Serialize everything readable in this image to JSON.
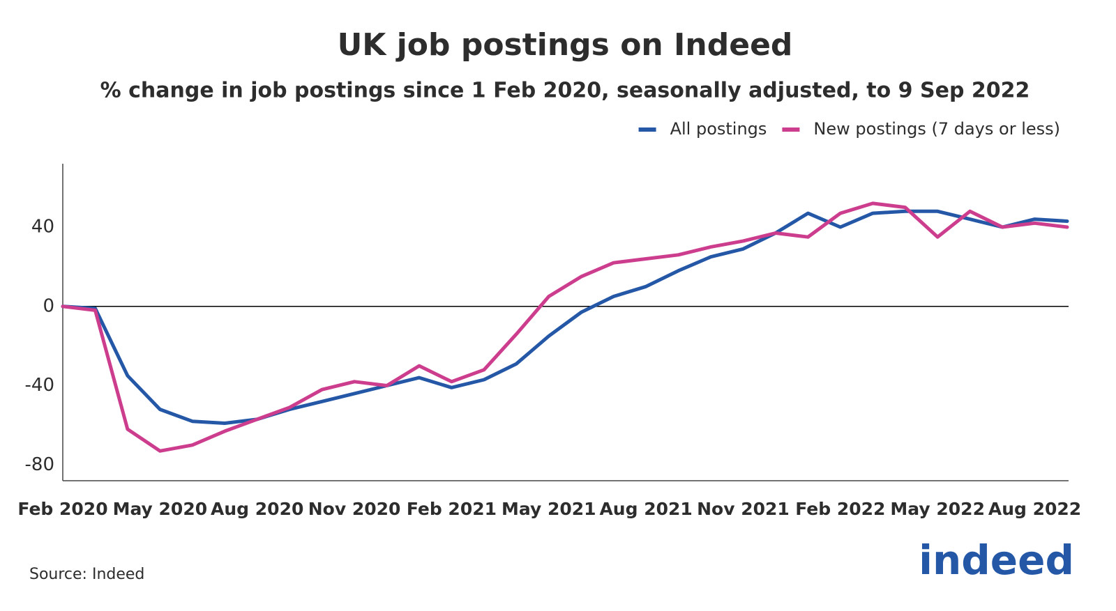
{
  "chart_data": {
    "type": "line",
    "title": "UK job postings on Indeed",
    "subtitle": "% change in job postings since 1 Feb 2020, seasonally adjusted, to 9 Sep 2022",
    "source": "Source: Indeed",
    "logo": "indeed",
    "x": [
      "2020-02",
      "2020-03",
      "2020-04",
      "2020-05",
      "2020-06",
      "2020-07",
      "2020-08",
      "2020-09",
      "2020-10",
      "2020-11",
      "2020-12",
      "2021-01",
      "2021-02",
      "2021-03",
      "2021-04",
      "2021-05",
      "2021-06",
      "2021-07",
      "2021-08",
      "2021-09",
      "2021-10",
      "2021-11",
      "2021-12",
      "2022-01",
      "2022-02",
      "2022-03",
      "2022-04",
      "2022-05",
      "2022-06",
      "2022-07",
      "2022-08",
      "2022-09"
    ],
    "series": [
      {
        "name": "All postings",
        "color": "#2557a7",
        "values": [
          0,
          -1,
          -35,
          -52,
          -58,
          -59,
          -57,
          -52,
          -48,
          -44,
          -40,
          -36,
          -41,
          -37,
          -29,
          -15,
          -3,
          5,
          10,
          18,
          25,
          29,
          37,
          47,
          40,
          47,
          48,
          48,
          44,
          40,
          44,
          43
        ]
      },
      {
        "name": "New postings (7 days or less)",
        "color": "#cd3d8e",
        "values": [
          0,
          -2,
          -62,
          -73,
          -70,
          -63,
          -57,
          -51,
          -42,
          -38,
          -40,
          -30,
          -38,
          -32,
          -14,
          5,
          15,
          22,
          24,
          26,
          30,
          33,
          37,
          35,
          47,
          52,
          50,
          35,
          48,
          40,
          42,
          40
        ]
      }
    ],
    "xlim": [
      "2020-02",
      "2022-09"
    ],
    "xticks": [
      {
        "value": "2020-02",
        "label": "Feb 2020"
      },
      {
        "value": "2020-05",
        "label": "May 2020"
      },
      {
        "value": "2020-08",
        "label": "Aug 2020"
      },
      {
        "value": "2020-11",
        "label": "Nov 2020"
      },
      {
        "value": "2021-02",
        "label": "Feb 2021"
      },
      {
        "value": "2021-05",
        "label": "May 2021"
      },
      {
        "value": "2021-08",
        "label": "Aug 2021"
      },
      {
        "value": "2021-11",
        "label": "Nov 2021"
      },
      {
        "value": "2022-02",
        "label": "Feb 2022"
      },
      {
        "value": "2022-05",
        "label": "May 2022"
      },
      {
        "value": "2022-08",
        "label": "Aug 2022"
      }
    ],
    "ylim": [
      -88,
      72
    ],
    "yticks": [
      -80,
      -40,
      0,
      40
    ],
    "grid": false,
    "legend": "top-right"
  }
}
